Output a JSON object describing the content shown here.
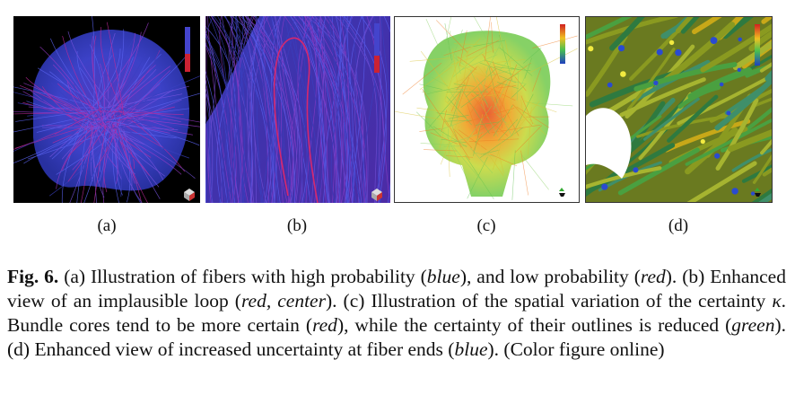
{
  "figure": {
    "panels": [
      {
        "id": "a",
        "label": "(a)"
      },
      {
        "id": "b",
        "label": "(b)"
      },
      {
        "id": "c",
        "label": "(c)"
      },
      {
        "id": "d",
        "label": "(d)"
      }
    ],
    "caption": {
      "fig_label": "Fig. 6.",
      "parts": [
        {
          "t": " (a) Illustration of fibers with high probability (",
          "i": false
        },
        {
          "t": "blue",
          "i": true
        },
        {
          "t": "), and low probability (",
          "i": false
        },
        {
          "t": "red",
          "i": true
        },
        {
          "t": "). (b) Enhanced view of an implausible loop (",
          "i": false
        },
        {
          "t": "red, center",
          "i": true
        },
        {
          "t": "). (c) Illustration of the spatial variation of the certainty ",
          "i": false
        },
        {
          "t": "κ",
          "i": true
        },
        {
          "t": ". Bundle cores tend to be more certain (",
          "i": false
        },
        {
          "t": "red",
          "i": true
        },
        {
          "t": "), while the certainty of their outlines is reduced (",
          "i": false
        },
        {
          "t": "green",
          "i": true
        },
        {
          "t": "). (d) Enhanced view of increased uncertainty at fiber ends (",
          "i": false
        },
        {
          "t": "blue",
          "i": true
        },
        {
          "t": "). (Color figure online)",
          "i": false
        }
      ]
    },
    "colors": {
      "high_probability": "#3b46d8",
      "low_probability": "#c0208a",
      "certain": "#e03a1e",
      "uncertain": "#5cc84a",
      "background_dark": "#000000"
    }
  }
}
